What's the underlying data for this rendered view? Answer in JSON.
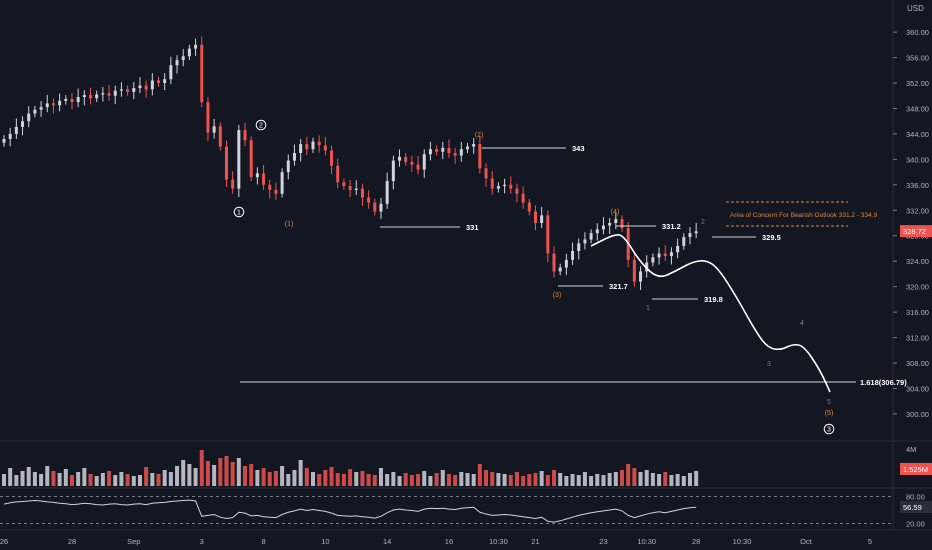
{
  "chart_data": {
    "type": "candlestick",
    "currency": "USD",
    "y_ticks": [
      "360.00",
      "356.00",
      "352.00",
      "348.00",
      "344.00",
      "340.00",
      "336.00",
      "332.00",
      "328.00",
      "324.00",
      "320.00",
      "316.00",
      "312.00",
      "308.00",
      "304.00",
      "300.00"
    ],
    "y_range": [
      297,
      363
    ],
    "last_price": "328.72",
    "x_labels": [
      {
        "label": "26",
        "i": 0
      },
      {
        "label": "28",
        "i": 11
      },
      {
        "label": "Sep",
        "i": 21
      },
      {
        "label": "3",
        "i": 32
      },
      {
        "label": "8",
        "i": 42
      },
      {
        "label": "10",
        "i": 52
      },
      {
        "label": "14",
        "i": 62
      },
      {
        "label": "16",
        "i": 72
      },
      {
        "label": "10:30",
        "i": 80
      },
      {
        "label": "21",
        "i": 86
      },
      {
        "label": "23",
        "i": 97
      },
      {
        "label": "10:30",
        "i": 104
      },
      {
        "label": "28",
        "i": 112
      }
    ],
    "projection_x_labels": [
      {
        "label": "10:30",
        "x": 742
      },
      {
        "label": "Oct",
        "x": 806
      },
      {
        "label": "5",
        "x": 870
      }
    ],
    "ohlc_sample_step": 1,
    "closes": [
      343.2,
      344.0,
      345.1,
      346.0,
      347.2,
      347.8,
      348.2,
      348.8,
      348.5,
      349.2,
      349.5,
      349.0,
      349.8,
      350.1,
      349.6,
      350.2,
      350.4,
      350.0,
      350.8,
      351.0,
      350.6,
      351.2,
      351.6,
      351.0,
      352.4,
      352.0,
      352.6,
      354.8,
      355.6,
      356.2,
      357.4,
      358.0,
      349.0,
      344.2,
      345.2,
      342.0,
      336.8,
      335.4,
      344.6,
      343.0,
      337.2,
      337.8,
      336.0,
      335.2,
      334.6,
      338.0,
      339.8,
      341.0,
      342.4,
      341.6,
      342.8,
      342.2,
      341.4,
      339.0,
      336.4,
      335.8,
      335.2,
      335.4,
      334.0,
      333.2,
      331.8,
      333.0,
      336.6,
      339.8,
      340.4,
      339.6,
      339.2,
      338.4,
      340.8,
      341.6,
      341.2,
      341.8,
      341.0,
      340.6,
      341.6,
      342.0,
      342.4,
      338.6,
      337.0,
      335.4,
      335.8,
      336.0,
      335.4,
      334.6,
      333.2,
      331.8,
      330.0,
      331.2,
      325.2,
      322.4,
      323.0,
      324.2,
      325.6,
      326.8,
      327.4,
      328.4,
      329.0,
      329.6,
      330.0,
      330.6,
      329.2,
      324.2,
      320.8,
      322.4,
      323.8,
      324.6,
      325.2,
      324.8,
      325.4,
      326.4,
      327.8,
      328.4,
      328.7
    ],
    "candle_colors_note": "white = up, red = down",
    "waves": {
      "sub_labels": [
        {
          "text": "(1)",
          "x": 289,
          "y": 226,
          "color": "#e0863a"
        },
        {
          "text": "(2)",
          "x": 479,
          "y": 137,
          "color": "#e0863a"
        },
        {
          "text": "(3)",
          "x": 557,
          "y": 297,
          "color": "#e0863a"
        },
        {
          "text": "(4)",
          "x": 615,
          "y": 214,
          "color": "#e0863a"
        },
        {
          "text": "(5)",
          "x": 829,
          "y": 415,
          "color": "#e0863a"
        },
        {
          "text": "1",
          "x": 648,
          "y": 310,
          "color": "#787b86"
        },
        {
          "text": "2",
          "x": 703,
          "y": 224,
          "color": "#787b86"
        },
        {
          "text": "3",
          "x": 769,
          "y": 366,
          "color": "#787b86"
        },
        {
          "text": "4",
          "x": 802,
          "y": 325,
          "color": "#787b86"
        },
        {
          "text": "5",
          "x": 829,
          "y": 404,
          "color": "#787b86"
        }
      ],
      "circled": [
        {
          "text": "1",
          "x": 239,
          "y": 212
        },
        {
          "text": "2",
          "x": 261,
          "y": 125
        },
        {
          "text": "3",
          "x": 829,
          "y": 429
        }
      ]
    },
    "levels": [
      {
        "label": "343",
        "x1": 482,
        "x2": 566,
        "y": 148
      },
      {
        "label": "331",
        "x1": 380,
        "x2": 460,
        "y": 227
      },
      {
        "label": "331.2",
        "x1": 616,
        "x2": 656,
        "y": 226
      },
      {
        "label": "329.5",
        "x1": 712,
        "x2": 756,
        "y": 237
      },
      {
        "label": "321.7",
        "x1": 558,
        "x2": 603,
        "y": 286
      },
      {
        "label": "319.8",
        "x1": 652,
        "x2": 698,
        "y": 299
      },
      {
        "label": "1.618(306.79)",
        "x1": 240,
        "x2": 856,
        "y": 382
      }
    ],
    "concern_zone": {
      "text": "Area of Concern For Bearish Outlook 331.2 - 334.9",
      "x1": 726,
      "x2": 848,
      "y_top": 202,
      "y_bottom": 226
    },
    "projection_path": [
      [
        591,
        246
      ],
      [
        615,
        234
      ],
      [
        624,
        236
      ],
      [
        640,
        262
      ],
      [
        658,
        279
      ],
      [
        676,
        271
      ],
      [
        692,
        262
      ],
      [
        706,
        260
      ],
      [
        718,
        268
      ],
      [
        736,
        296
      ],
      [
        756,
        332
      ],
      [
        768,
        348
      ],
      [
        781,
        350
      ],
      [
        793,
        344
      ],
      [
        804,
        346
      ],
      [
        820,
        370
      ],
      [
        830,
        392
      ]
    ],
    "volume": {
      "max_label": "4M",
      "value_label": "1.525M",
      "values": [
        1.2,
        1.8,
        1.1,
        1.5,
        1.9,
        1.4,
        1.2,
        2.0,
        1.5,
        1.3,
        1.7,
        1.1,
        1.4,
        1.8,
        1.2,
        1.0,
        1.3,
        1.5,
        1.1,
        1.4,
        1.2,
        1.0,
        1.1,
        1.9,
        1.3,
        1.2,
        1.6,
        1.4,
        2.0,
        2.6,
        2.2,
        1.8,
        3.6,
        2.5,
        2.1,
        2.8,
        3.0,
        2.4,
        2.8,
        2.0,
        2.2,
        1.6,
        1.8,
        1.4,
        1.5,
        2.0,
        1.2,
        1.6,
        2.6,
        1.8,
        1.4,
        1.2,
        1.6,
        1.9,
        1.3,
        1.2,
        1.7,
        1.4,
        1.5,
        1.2,
        1.1,
        1.8,
        1.2,
        1.4,
        1.0,
        1.3,
        1.1,
        1.2,
        1.5,
        1.0,
        1.3,
        1.6,
        1.2,
        1.1,
        1.4,
        1.3,
        1.2,
        2.2,
        1.6,
        1.4,
        1.3,
        1.2,
        1.1,
        1.4,
        1.0,
        1.2,
        1.3,
        1.5,
        1.1,
        1.6,
        1.3,
        1.0,
        1.2,
        1.1,
        1.4,
        1.0,
        1.2,
        1.1,
        1.3,
        1.4,
        1.6,
        2.2,
        1.8,
        1.4,
        1.6,
        1.3,
        1.2,
        1.4,
        1.1,
        1.2,
        1.0,
        1.3,
        1.5
      ]
    },
    "rsi": {
      "top_label": "80.00",
      "value_label": "56.59",
      "bottom_label": "20.00",
      "values": [
        63,
        66,
        68,
        69,
        70,
        71,
        70,
        68,
        67,
        65,
        64,
        62,
        63,
        65,
        64,
        62,
        61,
        63,
        64,
        62,
        61,
        63,
        64,
        62,
        65,
        66,
        67,
        69,
        70,
        71,
        72,
        70,
        36,
        38,
        40,
        34,
        31,
        33,
        45,
        43,
        37,
        38,
        35,
        34,
        33,
        40,
        45,
        48,
        52,
        49,
        51,
        49,
        47,
        43,
        38,
        37,
        36,
        37,
        35,
        34,
        32,
        36,
        44,
        50,
        52,
        50,
        49,
        47,
        52,
        54,
        53,
        54,
        52,
        51,
        54,
        55,
        56,
        45,
        41,
        38,
        39,
        40,
        39,
        37,
        35,
        33,
        31,
        34,
        25,
        23,
        26,
        30,
        34,
        38,
        41,
        44,
        46,
        48,
        50,
        52,
        48,
        38,
        33,
        37,
        41,
        44,
        46,
        44,
        47,
        50,
        53,
        55,
        56
      ]
    }
  }
}
